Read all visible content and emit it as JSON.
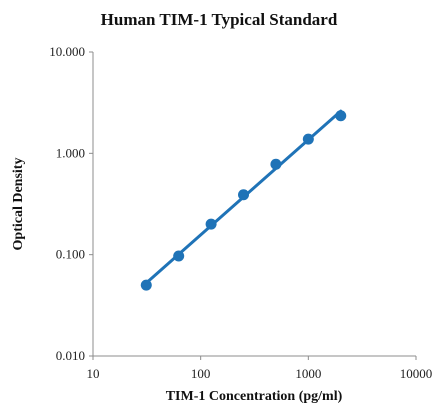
{
  "chart_data": {
    "type": "scatter",
    "title": "Human TIM-1 Typical Standard",
    "xlabel": "TIM-1 Concentration (pg/ml)",
    "ylabel": "Optical Density",
    "xscale": "log",
    "yscale": "log",
    "xlim": [
      10,
      10000
    ],
    "ylim": [
      0.01,
      10
    ],
    "x_ticks": [
      10,
      100,
      1000,
      10000
    ],
    "x_tick_labels": [
      "10",
      "100",
      "1000",
      "10000"
    ],
    "y_ticks": [
      0.01,
      0.1,
      1,
      10
    ],
    "y_tick_labels": [
      "0.010",
      "0.100",
      "1.000",
      "10.000"
    ],
    "grid": false,
    "legend": "none",
    "series": [
      {
        "x": [
          31.25,
          62.5,
          125,
          250,
          500,
          1000,
          2000
        ],
        "y": [
          0.05,
          0.097,
          0.2,
          0.39,
          0.78,
          1.38,
          2.35
        ],
        "color": "#1f73b7",
        "trendline": "power"
      }
    ]
  }
}
